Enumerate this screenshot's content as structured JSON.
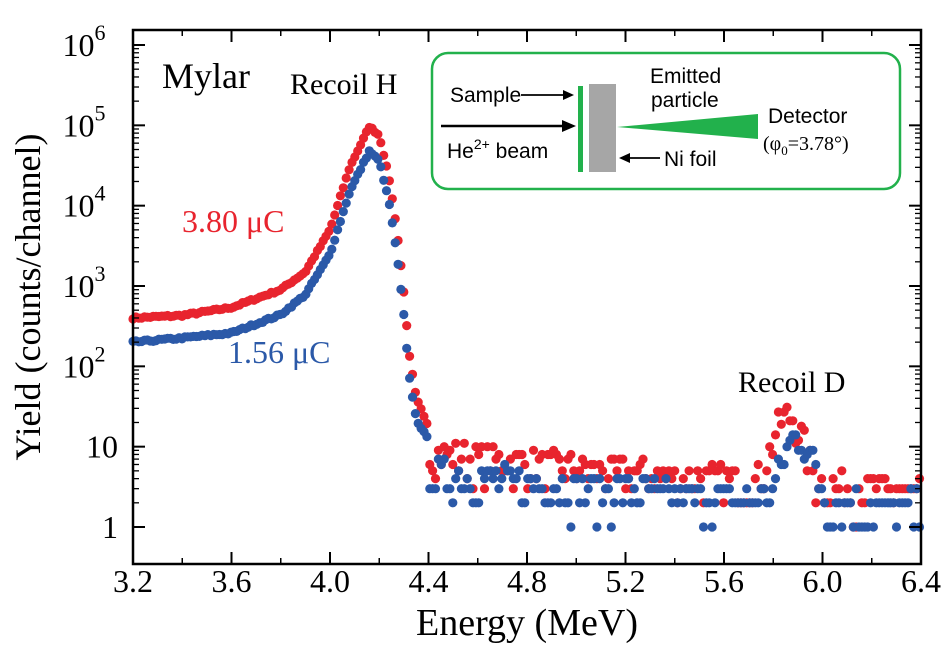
{
  "chart_data": {
    "type": "scatter",
    "xlabel": "Energy (MeV)",
    "ylabel": "Yield (counts/channel)",
    "xlim": [
      3.2,
      6.4
    ],
    "ylim": [
      0.5,
      1000000
    ],
    "y_scale": "log",
    "grid": false,
    "x_ticks": [
      "3.2",
      "3.6",
      "4.0",
      "4.4",
      "4.8",
      "5.2",
      "5.6",
      "6.0",
      "6.4"
    ],
    "y_ticks": [
      {
        "base": "1",
        "exp": ""
      },
      {
        "base": "10",
        "exp": ""
      },
      {
        "base": "10",
        "exp": "2"
      },
      {
        "base": "10",
        "exp": "3"
      },
      {
        "base": "10",
        "exp": "4"
      },
      {
        "base": "10",
        "exp": "5"
      },
      {
        "base": "10",
        "exp": "6"
      }
    ],
    "y_tick_values": [
      1,
      10,
      100,
      1000,
      10000,
      100000,
      1000000
    ],
    "sample_label": "Mylar",
    "annotations": {
      "recoil_h": "Recoil H",
      "recoil_d": "Recoil D"
    },
    "series": [
      {
        "name": "3.80 μC",
        "color": "#e8242e",
        "peak_h": {
          "x": 4.16,
          "y": 97000
        },
        "plateau": [
          [
            3.2,
            400
          ],
          [
            3.4,
            430
          ],
          [
            3.6,
            540
          ],
          [
            3.8,
            900
          ],
          [
            3.9,
            1500
          ],
          [
            4.0,
            5000
          ],
          [
            4.08,
            30000
          ],
          [
            4.16,
            97000
          ],
          [
            4.2,
            75000
          ],
          [
            4.24,
            22000
          ],
          [
            4.27,
            5500
          ],
          [
            4.3,
            850
          ],
          [
            4.32,
            150
          ],
          [
            4.35,
            40
          ],
          [
            4.4,
            18
          ]
        ],
        "tail": {
          "x_start": 4.4,
          "x_end": 6.4,
          "levels": [
            1,
            2,
            3,
            4,
            5,
            6,
            8,
            10,
            15
          ]
        },
        "peak_d": {
          "x": 5.86,
          "y": 20
        }
      },
      {
        "name": "1.56 μC",
        "color": "#2b59a8",
        "peak_h": {
          "x": 4.16,
          "y": 48000
        },
        "plateau": [
          [
            3.2,
            200
          ],
          [
            3.4,
            225
          ],
          [
            3.6,
            260
          ],
          [
            3.8,
            440
          ],
          [
            3.9,
            780
          ],
          [
            4.0,
            2500
          ],
          [
            4.08,
            15000
          ],
          [
            4.16,
            48000
          ],
          [
            4.2,
            36000
          ],
          [
            4.24,
            11000
          ],
          [
            4.27,
            2700
          ],
          [
            4.3,
            430
          ],
          [
            4.32,
            80
          ],
          [
            4.35,
            22
          ],
          [
            4.4,
            12
          ]
        ],
        "tail": {
          "x_start": 4.4,
          "x_end": 6.4,
          "levels": [
            1,
            2,
            3,
            4,
            5,
            6,
            8,
            10
          ]
        },
        "peak_d": {
          "x": 5.9,
          "y": 13
        }
      }
    ],
    "inset": {
      "sample": "Sample",
      "beam_base": "He",
      "beam_sup": "2+",
      "beam_rest": " beam",
      "emitted_line1": "Emitted",
      "emitted_line2": "particle",
      "detector": "Detector",
      "angle_open": "(φ",
      "angle_sub": "0",
      "angle_rest": "=3.78°)",
      "foil": "Ni foil",
      "border_color": "#22b14c",
      "foil_color": "#a6a6a6",
      "cone_color": "#22b14c"
    }
  }
}
